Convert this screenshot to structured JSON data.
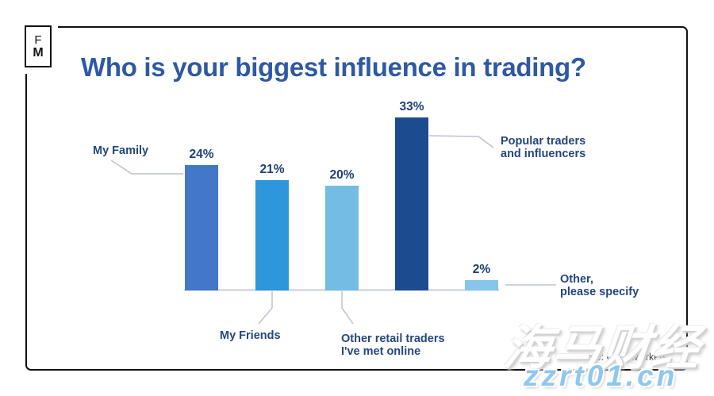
{
  "logo": {
    "top": "F",
    "bottom": "M"
  },
  "chart_data": {
    "type": "bar",
    "title": "Who is your biggest influence in trading?",
    "categories": [
      "My Family",
      "My Friends",
      "Other retail traders I've met online",
      "Popular traders and influencers",
      "Other, please specify"
    ],
    "values": [
      24,
      21,
      20,
      33,
      2
    ],
    "value_labels": [
      "24%",
      "21%",
      "20%",
      "33%",
      "2%"
    ],
    "bar_colors": [
      "#4377C8",
      "#2E96DA",
      "#74BCE3",
      "#1C4B8F",
      "#85C6EA"
    ],
    "unit": "%",
    "ylim": [
      0,
      35
    ],
    "grid": false,
    "orientation": "vertical",
    "legend": "none",
    "xlabel": "",
    "ylabel": ""
  },
  "annotations": {
    "my_family": "My Family",
    "my_friends": "My Friends",
    "other_retail_line1": "Other retail traders",
    "other_retail_line2": "I've met online",
    "popular_line1": "Popular traders",
    "popular_line2": "and influencers",
    "other_specify_line1": "Other,",
    "other_specify_line2": "please specify"
  },
  "source": {
    "text": "Source: CMC Markets"
  },
  "watermark": {
    "cjk_text": "海马财经",
    "domain_text": "zzrt01.cn"
  },
  "colors": {
    "title": "#2E59A3",
    "label": "#24477D",
    "value_label": "#1E3F75",
    "leader_line": "#BCC3CE",
    "axis_line": "#C9CEDA",
    "card_border": "#101010",
    "watermark_blue": "#8EC7EF"
  }
}
